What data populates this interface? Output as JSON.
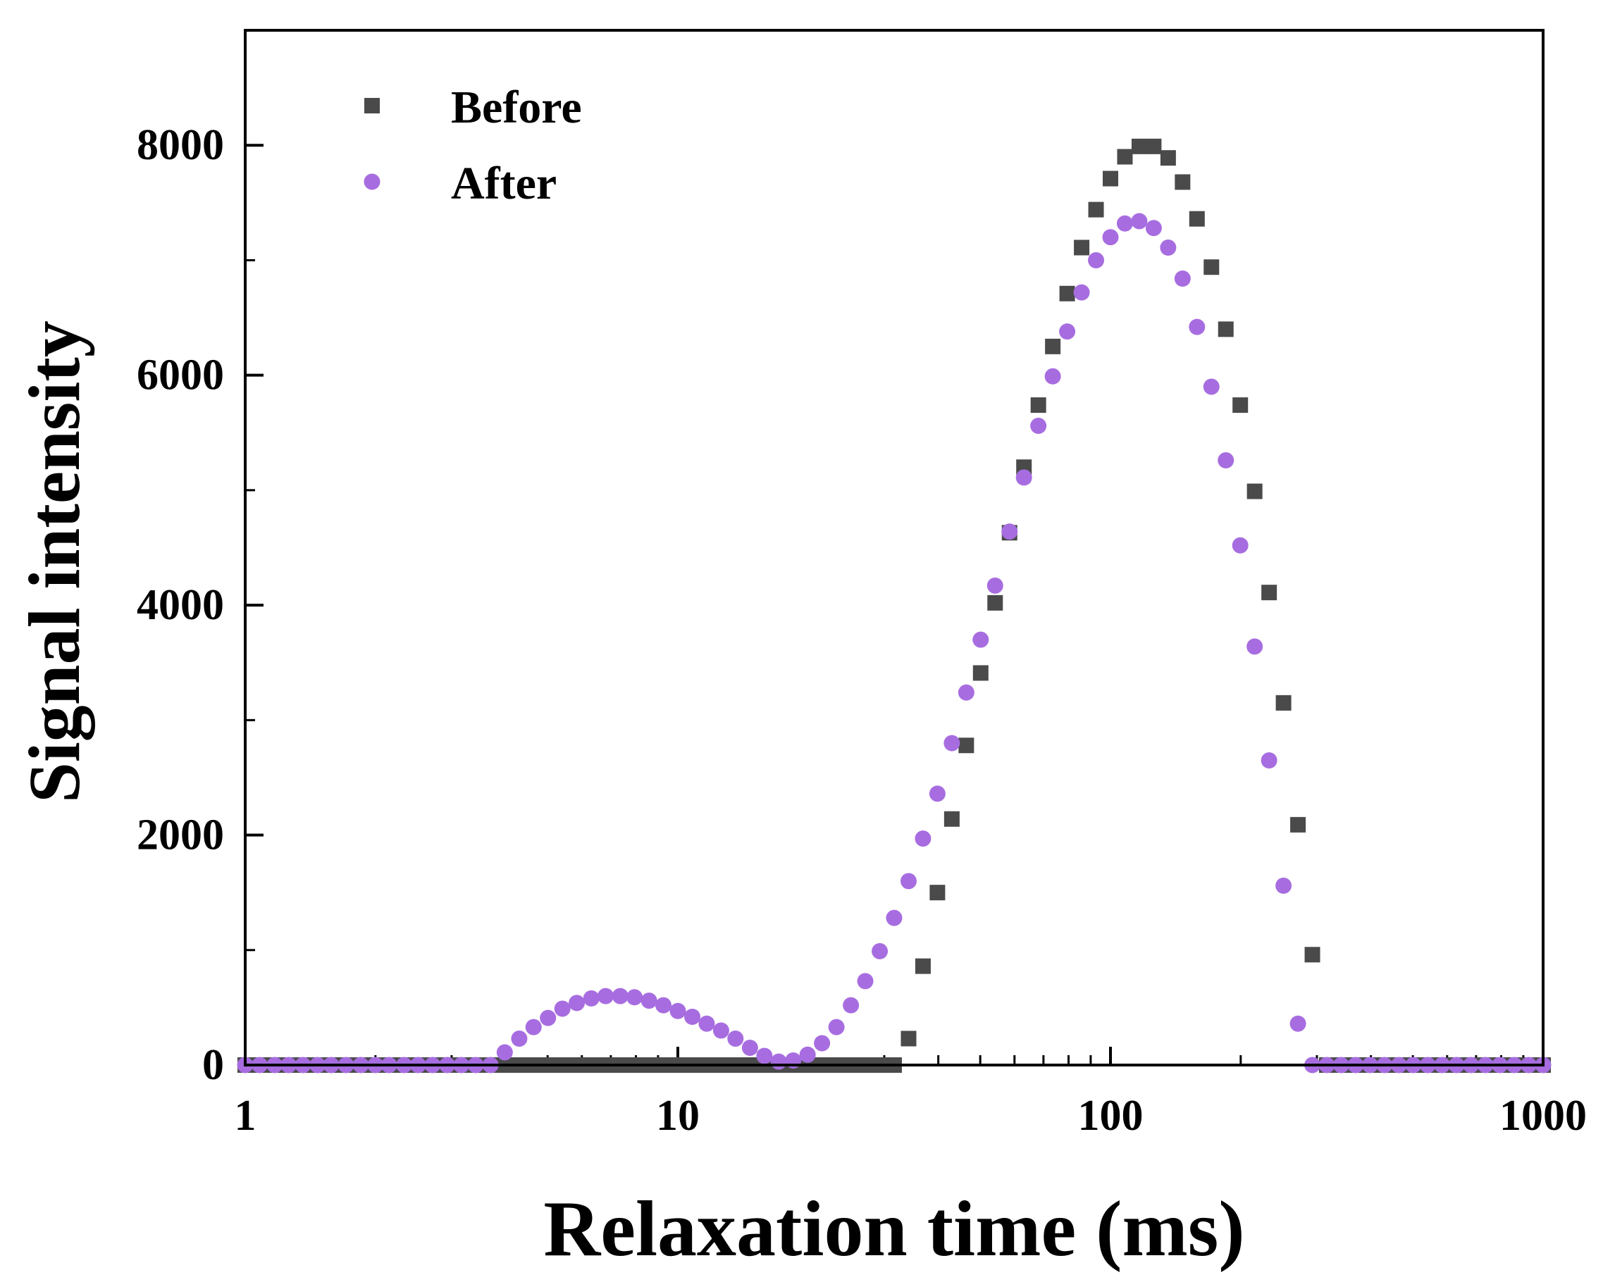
{
  "chart_data": {
    "type": "scatter",
    "title": "",
    "xlabel": "Relaxation time (ms)",
    "ylabel": "Signal intensity",
    "xscale": "log",
    "xlim": [
      1,
      1000
    ],
    "ylim": [
      0,
      9000
    ],
    "xticks": [
      1,
      10,
      100,
      1000
    ],
    "xtick_labels": [
      "1",
      "10",
      "100",
      "1000"
    ],
    "yticks": [
      0,
      2000,
      4000,
      6000,
      8000
    ],
    "ytick_labels": [
      "0",
      "2000",
      "4000",
      "6000",
      "8000"
    ],
    "grid": false,
    "legend": "top-left",
    "series": [
      {
        "name": "Before",
        "marker": "square",
        "color": "#4a4a4a",
        "x": [
          1.0,
          1.08,
          1.17,
          1.26,
          1.36,
          1.47,
          1.58,
          1.71,
          1.85,
          2.0,
          2.15,
          2.33,
          2.51,
          2.71,
          2.93,
          3.16,
          3.41,
          3.69,
          3.98,
          4.3,
          4.64,
          5.01,
          5.41,
          5.84,
          6.31,
          6.81,
          7.36,
          7.94,
          8.58,
          9.26,
          10.0,
          10.8,
          11.66,
          12.59,
          13.59,
          14.68,
          15.85,
          17.11,
          18.48,
          19.95,
          21.54,
          23.26,
          25.12,
          27.12,
          29.29,
          31.62,
          34.15,
          36.87,
          39.81,
          42.99,
          46.42,
          50.12,
          54.12,
          58.44,
          63.1,
          68.13,
          73.56,
          79.43,
          85.77,
          92.61,
          100.0,
          107.98,
          116.59,
          125.89,
          135.94,
          146.78,
          158.49,
          171.13,
          184.79,
          199.53,
          215.44,
          232.63,
          251.19,
          271.23,
          292.87,
          316.23,
          341.46,
          368.7,
          398.11,
          429.87,
          464.16,
          501.19,
          541.17,
          584.37,
          630.96,
          681.29,
          735.64,
          794.33,
          857.7,
          926.12,
          1000.0
        ],
        "y": [
          0,
          0,
          0,
          0,
          0,
          0,
          0,
          0,
          0,
          0,
          0,
          0,
          0,
          0,
          0,
          0,
          0,
          0,
          0,
          0,
          0,
          0,
          0,
          0,
          0,
          0,
          0,
          0,
          0,
          0,
          0,
          0,
          0,
          0,
          0,
          0,
          0,
          0,
          0,
          0,
          0,
          0,
          0,
          0,
          0,
          0,
          230,
          860,
          1500,
          2140,
          2780,
          3410,
          4020,
          4630,
          5200,
          5740,
          6250,
          6710,
          7110,
          7440,
          7710,
          7900,
          7990,
          7990,
          7890,
          7680,
          7360,
          6940,
          6400,
          5740,
          4990,
          4110,
          3150,
          2090,
          960,
          0,
          0,
          0,
          0,
          0,
          0,
          0,
          0,
          0,
          0,
          0,
          0,
          0,
          0,
          0,
          0
        ]
      },
      {
        "name": "After",
        "marker": "circle",
        "color": "#a76de0",
        "x": [
          1.0,
          1.08,
          1.17,
          1.26,
          1.36,
          1.47,
          1.58,
          1.71,
          1.85,
          2.0,
          2.15,
          2.33,
          2.51,
          2.71,
          2.93,
          3.16,
          3.41,
          3.69,
          3.98,
          4.3,
          4.64,
          5.01,
          5.41,
          5.84,
          6.31,
          6.81,
          7.36,
          7.94,
          8.58,
          9.26,
          10.0,
          10.8,
          11.66,
          12.59,
          13.59,
          14.68,
          15.85,
          17.11,
          18.48,
          19.95,
          21.54,
          23.26,
          25.12,
          27.12,
          29.29,
          31.62,
          34.15,
          36.87,
          39.81,
          42.99,
          46.42,
          50.12,
          54.12,
          58.44,
          63.1,
          68.13,
          73.56,
          79.43,
          85.77,
          92.61,
          100.0,
          107.98,
          116.59,
          125.89,
          135.94,
          146.78,
          158.49,
          171.13,
          184.79,
          199.53,
          215.44,
          232.63,
          251.19,
          271.23,
          292.87,
          316.23,
          341.46,
          368.7,
          398.11,
          429.87,
          464.16,
          501.19,
          541.17,
          584.37,
          630.96,
          681.29,
          735.64,
          794.33,
          857.7,
          926.12,
          1000.0
        ],
        "y": [
          0,
          0,
          0,
          0,
          0,
          0,
          0,
          0,
          0,
          0,
          0,
          0,
          0,
          0,
          0,
          0,
          0,
          0,
          110,
          230,
          330,
          410,
          490,
          540,
          580,
          600,
          600,
          590,
          560,
          520,
          470,
          420,
          360,
          300,
          230,
          150,
          80,
          30,
          40,
          90,
          190,
          330,
          520,
          730,
          990,
          1280,
          1600,
          1970,
          2360,
          2800,
          3240,
          3700,
          4170,
          4640,
          5110,
          5560,
          5990,
          6380,
          6720,
          7000,
          7200,
          7320,
          7340,
          7280,
          7110,
          6840,
          6420,
          5900,
          5260,
          4520,
          3640,
          2650,
          1560,
          360,
          0,
          0,
          0,
          0,
          0,
          0,
          0,
          0,
          0,
          0,
          0,
          0,
          0,
          0,
          0,
          0,
          0
        ]
      }
    ]
  }
}
